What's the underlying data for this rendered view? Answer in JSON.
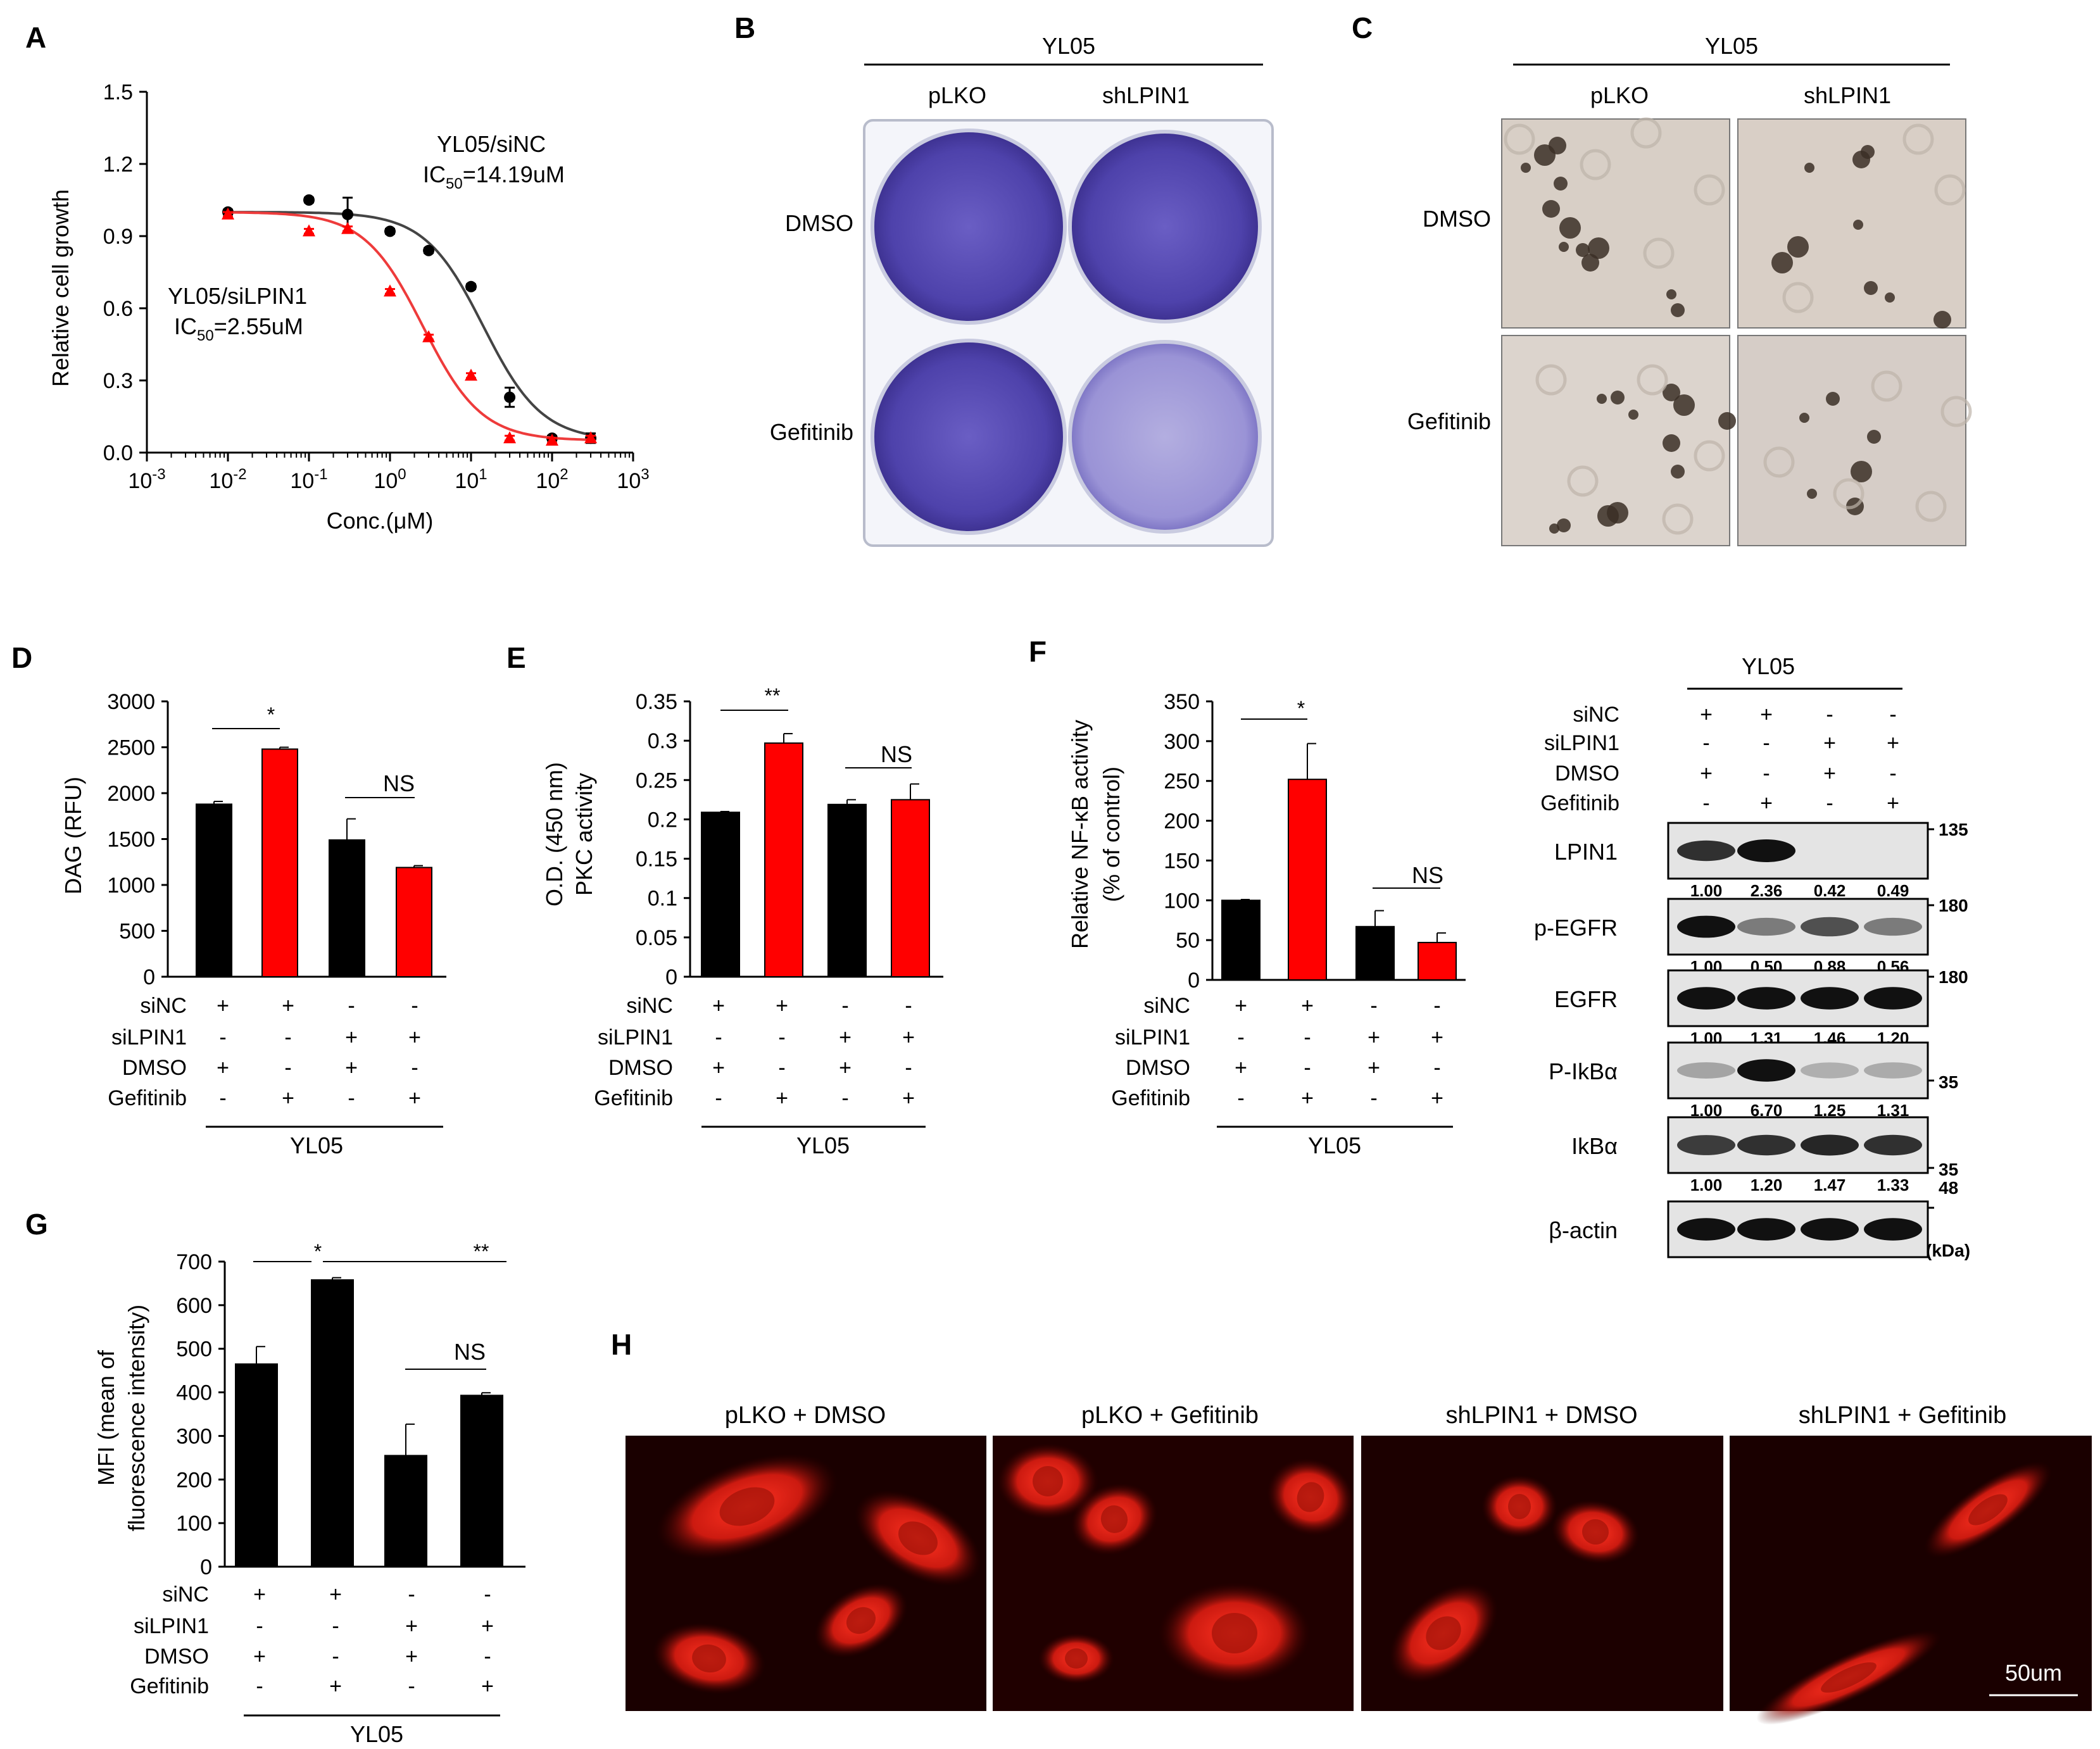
{
  "panel_labels": {
    "a": "A",
    "b": "B",
    "c": "C",
    "d": "D",
    "e": "E",
    "f": "F",
    "g": "G",
    "h": "H"
  },
  "colors": {
    "black": "#000000",
    "red": "#ff0000",
    "curve_black": "#444444",
    "curve_red": "#ee3b3b",
    "crystal_violet": "#5b4fb8"
  },
  "panel_a": {
    "title": "YL05",
    "ylabel": "Relative cell growth",
    "xlabel": "Conc.(μM)",
    "yticks": [
      "0.0",
      "0.3",
      "0.6",
      "0.9",
      "1.2",
      "1.5"
    ],
    "xtick_base": "10",
    "xtick_exps": [
      "-3",
      "-2",
      "-1",
      "0",
      "1",
      "2",
      "3"
    ],
    "label_nc_line1": "YL05/siNC",
    "label_nc_line2_pre": "IC",
    "label_nc_line2_sub": "50",
    "label_nc_line2_post": "=14.19uM",
    "label_lpin_line1": "YL05/siLPIN1",
    "label_lpin_line2_pre": "IC",
    "label_lpin_line2_sub": "50",
    "label_lpin_line2_post": "=2.55uM"
  },
  "panel_b": {
    "title": "YL05",
    "col1": "pLKO",
    "col2": "shLPIN1",
    "row1": "DMSO",
    "row2": "Gefitinib"
  },
  "panel_c": {
    "title": "YL05",
    "col1": "pLKO",
    "col2": "shLPIN1",
    "row1": "DMSO",
    "row2": "Gefitinib"
  },
  "treatment_rows": {
    "labels": [
      "siNC",
      "siLPIN1",
      "DMSO",
      "Gefitinib"
    ],
    "signs": [
      [
        "+",
        "+",
        "-",
        "-"
      ],
      [
        "-",
        "-",
        "+",
        "+"
      ],
      [
        "+",
        "-",
        "+",
        "-"
      ],
      [
        "-",
        "+",
        "-",
        "+"
      ]
    ],
    "group": "YL05"
  },
  "panel_d": {
    "ylabel": "DAG (RFU)",
    "yticks": [
      "0",
      "500",
      "1000",
      "1500",
      "2000",
      "2500",
      "3000"
    ],
    "sig1": "*",
    "sig2": "NS"
  },
  "panel_e": {
    "ylabel_line1": "O.D. (450 nm)",
    "ylabel_line2": "PKC activity",
    "yticks": [
      "0",
      "0.05",
      "0.1",
      "0.15",
      "0.2",
      "0.25",
      "0.3",
      "0.35"
    ],
    "sig1": "**",
    "sig2": "NS"
  },
  "panel_f": {
    "ylabel_line1": "Relative NF-κB activity",
    "ylabel_line2": "(% of control)",
    "yticks": [
      "0",
      "50",
      "100",
      "150",
      "200",
      "250",
      "300",
      "350"
    ],
    "sig1": "*",
    "sig2": "NS"
  },
  "panel_g": {
    "ylabel_line1": "MFI (mean of",
    "ylabel_line2": "fluorescence intensity)",
    "yticks": [
      "0",
      "100",
      "200",
      "300",
      "400",
      "500",
      "600",
      "700"
    ],
    "sig1": "*",
    "sig2": "**",
    "sig3": "NS"
  },
  "western": {
    "title": "YL05",
    "row_labels": [
      "siNC",
      "siLPIN1",
      "DMSO",
      "Gefitinib"
    ],
    "bands": [
      {
        "name": "LPIN1",
        "quant": [
          "1.00",
          "2.36",
          "0.42",
          "0.49"
        ]
      },
      {
        "name": "p-EGFR",
        "quant": [
          "1.00",
          "0.50",
          "0.88",
          "0.56"
        ]
      },
      {
        "name": "EGFR",
        "quant": [
          "1.00",
          "1.31",
          "1.46",
          "1.20"
        ]
      },
      {
        "name": "P-IkBα",
        "quant": [
          "1.00",
          "6.70",
          "1.25",
          "1.31"
        ]
      },
      {
        "name": "IkBα",
        "quant": [
          "1.00",
          "1.20",
          "1.47",
          "1.33"
        ]
      },
      {
        "name": "β-actin",
        "quant": []
      }
    ],
    "markers": [
      "135",
      "180",
      "180",
      "35",
      "35",
      "48"
    ],
    "kda": "(kDa)"
  },
  "panel_h": {
    "titles": [
      "pLKO + DMSO",
      "pLKO + Gefitinib",
      "shLPIN1 + DMSO",
      "shLPIN1 + Gefitinib"
    ],
    "scalebar": "50um"
  },
  "chart_data": [
    {
      "type": "scatter",
      "title": "",
      "xlabel": "Conc.(μM)",
      "ylabel": "Relative cell growth",
      "xscale": "log",
      "xlim": [
        0.001,
        1000
      ],
      "ylim": [
        0,
        1.5
      ],
      "series": [
        {
          "name": "YL05/siNC",
          "color": "#000000",
          "x": [
            0.01,
            0.1,
            0.3,
            1,
            3,
            10,
            30,
            100,
            300
          ],
          "y": [
            1.0,
            1.05,
            0.99,
            0.92,
            0.84,
            0.69,
            0.23,
            0.06,
            0.06
          ],
          "err": [
            0.01,
            0.01,
            0.07,
            0.01,
            0.01,
            0.01,
            0.04,
            0.01,
            0.02
          ],
          "ic50": 14.19
        },
        {
          "name": "YL05/siLPIN1",
          "color": "#ff0000",
          "x": [
            0.01,
            0.1,
            0.3,
            1,
            3,
            10,
            30,
            100,
            300
          ],
          "y": [
            0.99,
            0.92,
            0.93,
            0.67,
            0.48,
            0.32,
            0.06,
            0.05,
            0.06
          ],
          "err": [
            0.01,
            0.01,
            0.01,
            0.01,
            0.01,
            0.01,
            0.01,
            0.01,
            0.01
          ],
          "ic50": 2.55
        }
      ]
    },
    {
      "type": "bar",
      "ylabel": "DAG (RFU)",
      "ylim": [
        0,
        3000
      ],
      "categories": [
        "1",
        "2",
        "3",
        "4"
      ],
      "values": [
        1880,
        2480,
        1490,
        1190
      ],
      "errors": [
        30,
        20,
        230,
        20
      ],
      "colors": [
        "#000000",
        "#ff0000",
        "#000000",
        "#ff0000"
      ]
    },
    {
      "type": "bar",
      "ylabel": "PKC activity",
      "ylim": [
        0,
        0.35
      ],
      "categories": [
        "1",
        "2",
        "3",
        "4"
      ],
      "values": [
        0.209,
        0.297,
        0.219,
        0.225
      ],
      "errors": [
        0.001,
        0.012,
        0.006,
        0.02
      ],
      "colors": [
        "#000000",
        "#ff0000",
        "#000000",
        "#ff0000"
      ]
    },
    {
      "type": "bar",
      "ylabel": "Relative NF-κB activity",
      "ylim": [
        0,
        350
      ],
      "categories": [
        "1",
        "2",
        "3",
        "4"
      ],
      "values": [
        100,
        252,
        67,
        47
      ],
      "errors": [
        1,
        45,
        20,
        12
      ],
      "colors": [
        "#000000",
        "#ff0000",
        "#000000",
        "#ff0000"
      ]
    },
    {
      "type": "bar",
      "ylabel": "MFI",
      "ylim": [
        0,
        700
      ],
      "categories": [
        "1",
        "2",
        "3",
        "4"
      ],
      "values": [
        465,
        658,
        255,
        393
      ],
      "errors": [
        40,
        5,
        72,
        6
      ],
      "colors": [
        "#000000",
        "#000000",
        "#000000",
        "#000000"
      ]
    }
  ]
}
